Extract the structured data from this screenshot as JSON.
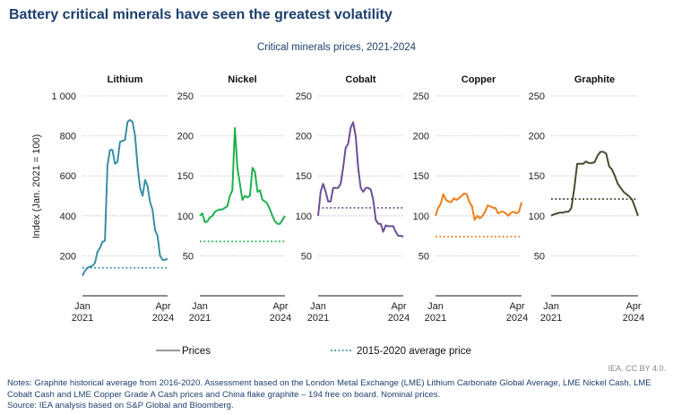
{
  "title": "Battery critical minerals have seen the greatest volatility",
  "chart_data": {
    "type": "line",
    "subtitle": "Critical minerals prices, 2021-2024",
    "ylabel": "Index (Jan. 2021 = 100)",
    "x_tick_labels": [
      [
        "Jan",
        "2021"
      ],
      [
        "Apr",
        "2024"
      ]
    ],
    "x_range": [
      "Jan 2021",
      "Apr 2024"
    ],
    "grid": "horizontal dotted",
    "legend": {
      "placement": "bottom",
      "items": [
        {
          "label": "Prices",
          "color": "#999999",
          "style": "solid"
        },
        {
          "label": "2015-2020 average price",
          "color": "#3a8ea5",
          "style": "dotted"
        }
      ]
    },
    "panels": [
      {
        "name": "Lithium",
        "color": "#3a8ea5",
        "ylim": [
          0,
          1000
        ],
        "yticks": [
          200,
          400,
          600,
          800,
          1000
        ],
        "ytick_labels": [
          "200",
          "400",
          "600",
          "800",
          "1 000"
        ],
        "average": 140,
        "values": [
          100,
          125,
          140,
          145,
          150,
          165,
          220,
          240,
          270,
          275,
          650,
          730,
          730,
          660,
          670,
          770,
          775,
          780,
          870,
          880,
          870,
          800,
          650,
          540,
          500,
          580,
          550,
          470,
          430,
          330,
          300,
          200,
          180,
          180,
          185
        ]
      },
      {
        "name": "Nickel",
        "color": "#1fb04f",
        "ylim": [
          0,
          250
        ],
        "yticks": [
          50,
          100,
          150,
          200,
          250
        ],
        "ytick_labels": [
          "50",
          "100",
          "150",
          "200",
          "250"
        ],
        "average": 68,
        "values": [
          100,
          103,
          92,
          93,
          98,
          100,
          105,
          107,
          108,
          108,
          110,
          112,
          125,
          132,
          210,
          160,
          140,
          120,
          125,
          123,
          125,
          160,
          155,
          130,
          132,
          120,
          118,
          115,
          108,
          100,
          93,
          90,
          90,
          95,
          100
        ]
      },
      {
        "name": "Cobalt",
        "color": "#6b4f96",
        "ylim": [
          0,
          250
        ],
        "yticks": [
          50,
          100,
          150,
          200,
          250
        ],
        "ytick_labels": [
          "50",
          "100",
          "150",
          "200",
          "250"
        ],
        "average": 110,
        "values": [
          100,
          130,
          140,
          130,
          118,
          118,
          135,
          135,
          135,
          140,
          160,
          185,
          190,
          210,
          217,
          200,
          160,
          135,
          130,
          135,
          135,
          133,
          120,
          95,
          90,
          90,
          80,
          88,
          87,
          87,
          87,
          80,
          75,
          75,
          74
        ]
      },
      {
        "name": "Copper",
        "color": "#f07d1a",
        "ylim": [
          0,
          250
        ],
        "yticks": [
          50,
          100,
          150,
          200,
          250
        ],
        "ytick_labels": [
          "50",
          "100",
          "150",
          "200",
          "250"
        ],
        "average": 74,
        "values": [
          100,
          110,
          115,
          127,
          120,
          118,
          117,
          122,
          120,
          122,
          125,
          128,
          127,
          117,
          112,
          95,
          100,
          97,
          100,
          105,
          113,
          112,
          110,
          110,
          103,
          105,
          105,
          103,
          100,
          104,
          105,
          103,
          105,
          117
        ]
      },
      {
        "name": "Graphite",
        "color": "#4b4b33",
        "ylim": [
          0,
          250
        ],
        "yticks": [
          50,
          100,
          150,
          200,
          250
        ],
        "ytick_labels": [
          "50",
          "100",
          "150",
          "200",
          "250"
        ],
        "average": 121,
        "values": [
          100,
          102,
          103,
          104,
          104,
          105,
          105,
          110,
          135,
          165,
          165,
          165,
          168,
          166,
          166,
          167,
          175,
          180,
          180,
          178,
          162,
          158,
          150,
          140,
          135,
          130,
          127,
          124,
          120,
          110,
          100
        ]
      }
    ]
  },
  "credit": "IEA. CC BY 4.0.",
  "notes": "Notes: Graphite historical average from 2016-2020. Assessment based on the London Metal Exchange (LME) Lithium Carbonate Global Average, LME Nickel Cash, LME Cobalt Cash and LME Copper Grade A Cash prices and China flake graphite – 194 free on board. Nominal prices.",
  "source": "Source: IEA analysis based on S&P Global and Bloomberg."
}
